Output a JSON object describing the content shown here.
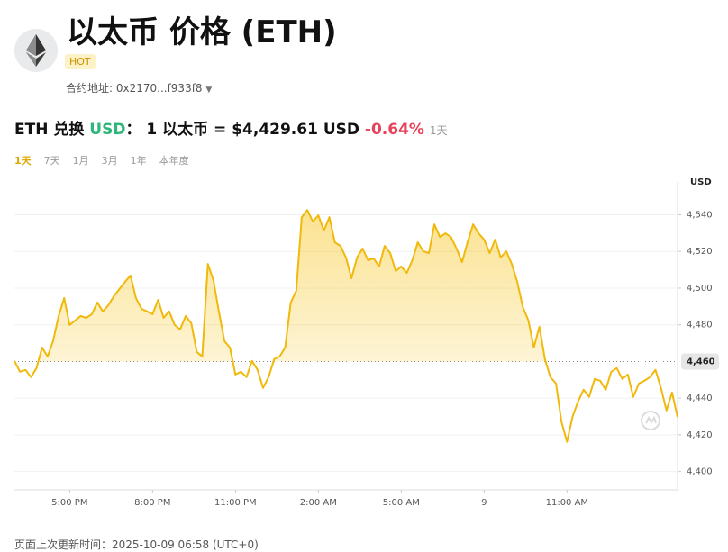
{
  "header": {
    "title": "以太币 价格 (ETH)",
    "badge": "HOT",
    "address": "合约地址: 0x2170...f933f8"
  },
  "conversion": {
    "from": "ETH 兑换",
    "to": "USD",
    "colon": "：",
    "rate": "1 以太币 = $4,429.61 USD",
    "change": "-0.64%",
    "period": "1天"
  },
  "ranges": {
    "items": [
      "1天",
      "7天",
      "1月",
      "3月",
      "1年",
      "本年度"
    ],
    "active": 0
  },
  "footer": "页面上次更新时间：2025-10-09 06:58 (UTC+0)",
  "chart_data": {
    "type": "line",
    "color": "#f0b90b",
    "y_unit": "USD",
    "xlim": [
      0,
      120
    ],
    "xticks": [
      {
        "value": 10,
        "label": "5:00 PM"
      },
      {
        "value": 25,
        "label": "8:00 PM"
      },
      {
        "value": 40,
        "label": "11:00 PM"
      },
      {
        "value": 55,
        "label": "2:00 AM"
      },
      {
        "value": 70,
        "label": "5:00 AM"
      },
      {
        "value": 85,
        "label": "9"
      },
      {
        "value": 100,
        "label": "11:00 AM"
      }
    ],
    "ylim": [
      4390,
      4554
    ],
    "yticks": [
      {
        "value": 4400,
        "label": "4,400"
      },
      {
        "value": 4420,
        "label": "4,420"
      },
      {
        "value": 4440,
        "label": "4,440"
      },
      {
        "value": 4480,
        "label": "4,480"
      },
      {
        "value": 4500,
        "label": "4,500"
      },
      {
        "value": 4520,
        "label": "4,520"
      },
      {
        "value": 4540,
        "label": "4,540"
      }
    ],
    "reference_line": {
      "value": 4460,
      "label": "4,460"
    },
    "grid": true,
    "values": [
      4460.3,
      4454.4,
      4455.4,
      4451.5,
      4456.4,
      4467.6,
      4462.7,
      4471.1,
      4484.8,
      4494.6,
      4479.9,
      4482.4,
      4484.8,
      4483.8,
      4485.8,
      4492.2,
      4487.3,
      4490.7,
      4495.6,
      4499.5,
      4503.4,
      4506.9,
      4494.6,
      4488.7,
      4487.3,
      4485.8,
      4493.6,
      4483.8,
      4487.3,
      4479.9,
      4477.5,
      4484.8,
      4480.9,
      4465.2,
      4462.7,
      4513.2,
      4504.4,
      4487.3,
      4471.1,
      4467.6,
      4452.9,
      4454.4,
      4451.5,
      4460.3,
      4455.4,
      4445.6,
      4451.5,
      4461.3,
      4462.7,
      4467.6,
      4492.2,
      4498.5,
      4538.7,
      4542.6,
      4536.3,
      4539.7,
      4531.4,
      4538.7,
      4525.0,
      4523.0,
      4516.7,
      4505.4,
      4516.7,
      4521.6,
      4515.2,
      4516.2,
      4511.8,
      4523.0,
      4519.1,
      4509.3,
      4511.8,
      4508.3,
      4515.2,
      4525.0,
      4520.1,
      4519.1,
      4534.8,
      4527.9,
      4529.9,
      4527.9,
      4521.6,
      4514.2,
      4525.0,
      4534.8,
      4529.9,
      4526.5,
      4519.1,
      4526.5,
      4516.7,
      4520.1,
      4513.2,
      4503.4,
      4489.7,
      4482.4,
      4467.6,
      4478.9,
      4461.3,
      4451.5,
      4448.0,
      4427.0,
      4416.2,
      4429.9,
      4438.2,
      4444.6,
      4440.7,
      4450.5,
      4449.5,
      4444.6,
      4454.4,
      4456.4,
      4450.5,
      4452.9,
      4440.7,
      4448.0,
      4449.5,
      4451.5,
      4455.4,
      4445.6,
      4433.3,
      4443.1,
      4429.61
    ]
  }
}
